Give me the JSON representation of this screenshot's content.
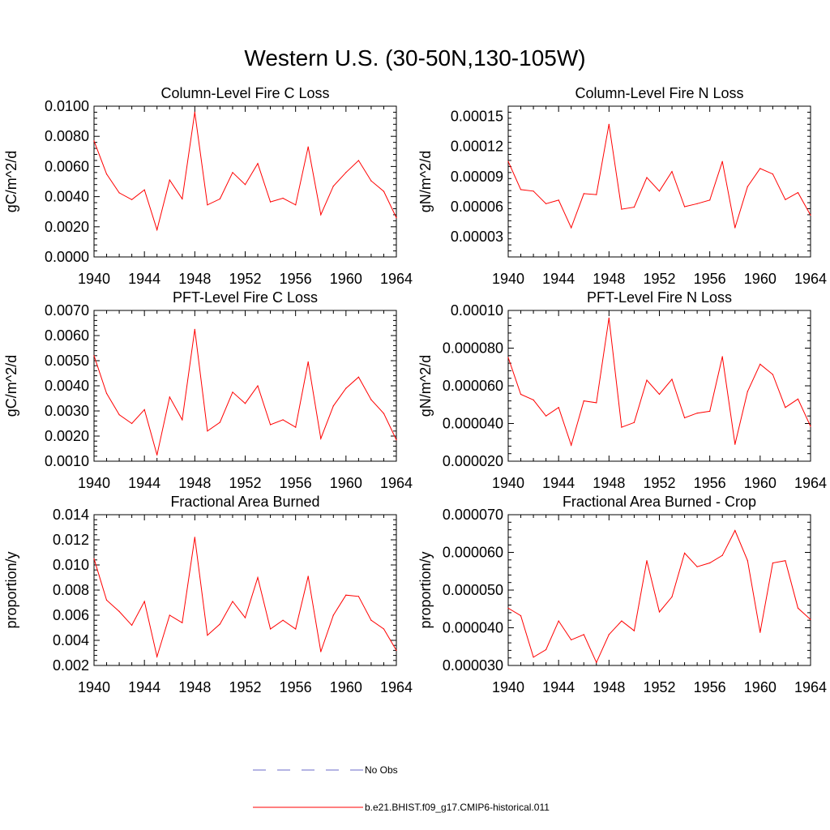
{
  "figure_title": "Western U.S. (30-50N,130-105W)",
  "colors": {
    "model": "#ff0000",
    "obs": "#6b6bc8",
    "axis": "#000000"
  },
  "legend": {
    "obs_label": "No Obs",
    "model_label": "b.e21.BHIST.f09_g17.CMIP6-historical.011"
  },
  "chart_data": [
    {
      "type": "line",
      "title": "Column-Level Fire C Loss",
      "ylabel": "gC/m^2/d",
      "xlim": [
        1940,
        1964
      ],
      "ylim": [
        0,
        0.01
      ],
      "xticks": [
        "1940",
        "1944",
        "1948",
        "1952",
        "1956",
        "1960",
        "1964"
      ],
      "yticks": [
        "0.0000",
        "0.0020",
        "0.0040",
        "0.0060",
        "0.0080",
        "0.0100"
      ],
      "x": [
        1940,
        1941,
        1942,
        1943,
        1944,
        1945,
        1946,
        1947,
        1948,
        1949,
        1950,
        1951,
        1952,
        1953,
        1954,
        1955,
        1956,
        1957,
        1958,
        1959,
        1960,
        1961,
        1962,
        1963,
        1964
      ],
      "series": [
        {
          "values": [
            0.0077,
            0.0055,
            0.00425,
            0.0038,
            0.00445,
            0.0018,
            0.0051,
            0.00385,
            0.0096,
            0.00345,
            0.00385,
            0.0056,
            0.0048,
            0.0062,
            0.00365,
            0.0039,
            0.00345,
            0.0073,
            0.0028,
            0.0047,
            0.0056,
            0.0064,
            0.00505,
            0.00435,
            0.0026
          ]
        }
      ]
    },
    {
      "type": "line",
      "title": "Column-Level Fire N Loss",
      "ylabel": "gN/m^2/d",
      "xlim": [
        1940,
        1964
      ],
      "ylim": [
        1e-05,
        0.00016
      ],
      "xticks": [
        "1940",
        "1944",
        "1948",
        "1952",
        "1956",
        "1960",
        "1964"
      ],
      "yticks": [
        "0.00003",
        "0.00006",
        "0.00009",
        "0.00012",
        "0.00015"
      ],
      "ytick_values": [
        3e-05,
        6e-05,
        9e-05,
        0.00012,
        0.00015
      ],
      "x": [
        1940,
        1941,
        1942,
        1943,
        1944,
        1945,
        1946,
        1947,
        1948,
        1949,
        1950,
        1951,
        1952,
        1953,
        1954,
        1955,
        1956,
        1957,
        1958,
        1959,
        1960,
        1961,
        1962,
        1963,
        1964
      ],
      "series": [
        {
          "values": [
            0.000105,
            7.7e-05,
            7.55e-05,
            6.3e-05,
            6.65e-05,
            3.9e-05,
            7.3e-05,
            7.2e-05,
            0.000142,
            5.75e-05,
            5.95e-05,
            8.9e-05,
            7.55e-05,
            9.5e-05,
            6e-05,
            6.3e-05,
            6.65e-05,
            0.000105,
            3.9e-05,
            8e-05,
            9.8e-05,
            9.25e-05,
            6.7e-05,
            7.4e-05,
            5.15e-05
          ]
        }
      ]
    },
    {
      "type": "line",
      "title": "PFT-Level Fire C Loss",
      "ylabel": "gC/m^2/d",
      "xlim": [
        1940,
        1964
      ],
      "ylim": [
        0.001,
        0.007
      ],
      "xticks": [
        "1940",
        "1944",
        "1948",
        "1952",
        "1956",
        "1960",
        "1964"
      ],
      "yticks": [
        "0.0010",
        "0.0020",
        "0.0030",
        "0.0040",
        "0.0050",
        "0.0060",
        "0.0070"
      ],
      "x": [
        1940,
        1941,
        1942,
        1943,
        1944,
        1945,
        1946,
        1947,
        1948,
        1949,
        1950,
        1951,
        1952,
        1953,
        1954,
        1955,
        1956,
        1957,
        1958,
        1959,
        1960,
        1961,
        1962,
        1963,
        1964
      ],
      "series": [
        {
          "values": [
            0.0052,
            0.0037,
            0.00285,
            0.0025,
            0.00305,
            0.00125,
            0.00355,
            0.00265,
            0.00625,
            0.0022,
            0.00255,
            0.00375,
            0.0033,
            0.004,
            0.00245,
            0.00265,
            0.00235,
            0.00495,
            0.0019,
            0.0032,
            0.0039,
            0.00435,
            0.00345,
            0.0029,
            0.00185
          ]
        }
      ]
    },
    {
      "type": "line",
      "title": "PFT-Level Fire N Loss",
      "ylabel": "gN/m^2/d",
      "xlim": [
        1940,
        1964
      ],
      "ylim": [
        2e-05,
        0.0001
      ],
      "xticks": [
        "1940",
        "1944",
        "1948",
        "1952",
        "1956",
        "1960",
        "1964"
      ],
      "yticks": [
        "0.000020",
        "0.000040",
        "0.000060",
        "0.000080",
        "0.00010"
      ],
      "x": [
        1940,
        1941,
        1942,
        1943,
        1944,
        1945,
        1946,
        1947,
        1948,
        1949,
        1950,
        1951,
        1952,
        1953,
        1954,
        1955,
        1956,
        1957,
        1958,
        1959,
        1960,
        1961,
        1962,
        1963,
        1964
      ],
      "series": [
        {
          "values": [
            7.5e-05,
            5.55e-05,
            5.25e-05,
            4.4e-05,
            4.85e-05,
            2.85e-05,
            5.2e-05,
            5.1e-05,
            9.6e-05,
            3.8e-05,
            4.05e-05,
            6.3e-05,
            5.55e-05,
            6.35e-05,
            4.3e-05,
            4.55e-05,
            4.65e-05,
            7.55e-05,
            2.9e-05,
            5.7e-05,
            7.15e-05,
            6.6e-05,
            4.85e-05,
            5.3e-05,
            3.85e-05
          ]
        }
      ]
    },
    {
      "type": "line",
      "title": "Fractional Area Burned",
      "ylabel": "proportion/y",
      "xlim": [
        1940,
        1964
      ],
      "ylim": [
        0.002,
        0.014
      ],
      "xticks": [
        "1940",
        "1944",
        "1948",
        "1952",
        "1956",
        "1960",
        "1964"
      ],
      "yticks": [
        "0.002",
        "0.004",
        "0.006",
        "0.008",
        "0.010",
        "0.012",
        "0.014"
      ],
      "x": [
        1940,
        1941,
        1942,
        1943,
        1944,
        1945,
        1946,
        1947,
        1948,
        1949,
        1950,
        1951,
        1952,
        1953,
        1954,
        1955,
        1956,
        1957,
        1958,
        1959,
        1960,
        1961,
        1962,
        1963,
        1964
      ],
      "series": [
        {
          "values": [
            0.0105,
            0.0072,
            0.0063,
            0.0052,
            0.0071,
            0.0027,
            0.006,
            0.0054,
            0.0122,
            0.0044,
            0.0053,
            0.0071,
            0.0058,
            0.009,
            0.0049,
            0.0056,
            0.0049,
            0.0091,
            0.0031,
            0.006,
            0.0076,
            0.0075,
            0.0056,
            0.0049,
            0.0032
          ]
        }
      ]
    },
    {
      "type": "line",
      "title": "Fractional Area Burned - Crop",
      "ylabel": "proportion/y",
      "xlim": [
        1940,
        1964
      ],
      "ylim": [
        3e-05,
        7e-05
      ],
      "xticks": [
        "1940",
        "1944",
        "1948",
        "1952",
        "1956",
        "1960",
        "1964"
      ],
      "yticks": [
        "0.000030",
        "0.000040",
        "0.000050",
        "0.000060",
        "0.000070"
      ],
      "x": [
        1940,
        1941,
        1942,
        1943,
        1944,
        1945,
        1946,
        1947,
        1948,
        1949,
        1950,
        1951,
        1952,
        1953,
        1954,
        1955,
        1956,
        1957,
        1958,
        1959,
        1960,
        1961,
        1962,
        1963,
        1964
      ],
      "series": [
        {
          "values": [
            4.52e-05,
            4.32e-05,
            3.22e-05,
            3.42e-05,
            4.18e-05,
            3.68e-05,
            3.82e-05,
            3.08e-05,
            3.82e-05,
            4.18e-05,
            3.92e-05,
            5.78e-05,
            4.42e-05,
            4.82e-05,
            5.98e-05,
            5.62e-05,
            5.72e-05,
            5.92e-05,
            6.58e-05,
            5.78e-05,
            3.88e-05,
            5.72e-05,
            5.78e-05,
            4.52e-05,
            4.22e-05
          ]
        }
      ]
    }
  ]
}
